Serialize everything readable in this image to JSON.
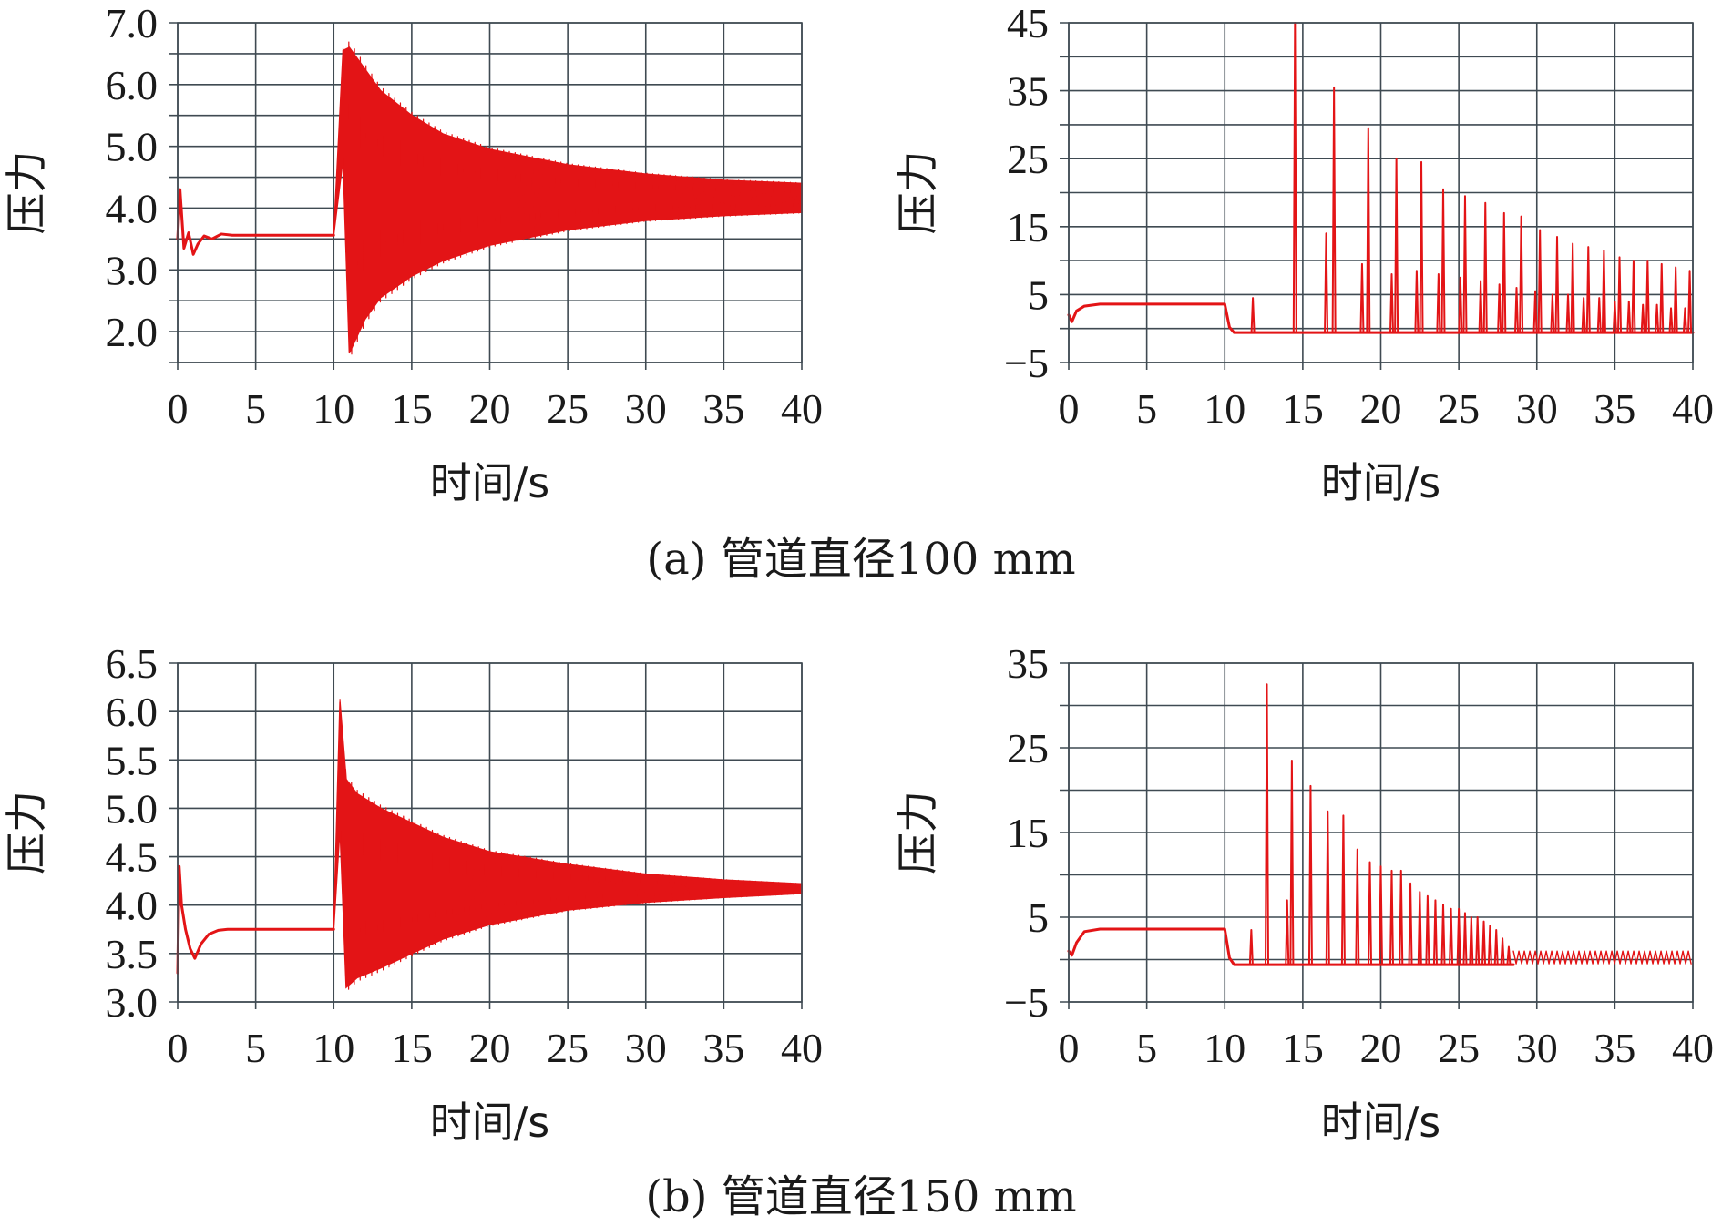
{
  "figure": {
    "captions": [
      "(a) 管道直径100 mm",
      "(b) 管道直径150 mm"
    ]
  },
  "style": {
    "series_color": "#e31416",
    "grid_color": "#3f4a52"
  },
  "chart_data": [
    {
      "id": "a-left",
      "type": "line",
      "row_caption": "(a) 管道直径100 mm",
      "xlabel": "时间/s",
      "ylabel": "压力",
      "xlim": [
        0,
        40
      ],
      "ylim": [
        1.5,
        7.0
      ],
      "x_ticks": [
        0,
        5,
        10,
        15,
        20,
        25,
        30,
        35,
        40
      ],
      "y_ticks": [
        2.0,
        3.0,
        4.0,
        5.0,
        6.0,
        7.0
      ],
      "y_tick_labels": [
        "2.0",
        "3.0",
        "4.0",
        "5.0",
        "6.0",
        "7.0"
      ],
      "y_grid": [
        1.5,
        2.0,
        2.5,
        3.0,
        3.5,
        4.0,
        4.5,
        5.0,
        5.5,
        6.0,
        6.5,
        7.0
      ],
      "grid": true,
      "series": [
        {
          "color": "#e31416",
          "kind": "envelope",
          "steady_x": [
            0,
            0.15,
            0.4,
            0.7,
            1.0,
            1.3,
            1.7,
            2.2,
            2.8,
            3.5,
            10.0
          ],
          "steady_y": [
            3.5,
            4.3,
            3.35,
            3.6,
            3.25,
            3.42,
            3.55,
            3.5,
            3.58,
            3.56,
            3.56
          ],
          "peak_x": [
            10.0,
            10.6,
            11.0,
            12.0,
            13.0,
            15.0,
            17.0,
            20.0,
            25.0,
            30.0,
            35.0,
            40.0
          ],
          "upper": [
            3.56,
            6.55,
            6.6,
            6.25,
            5.9,
            5.5,
            5.2,
            4.95,
            4.7,
            4.55,
            4.45,
            4.4
          ],
          "lower": [
            3.56,
            4.8,
            1.65,
            2.2,
            2.55,
            2.9,
            3.15,
            3.4,
            3.65,
            3.8,
            3.88,
            3.93
          ]
        }
      ]
    },
    {
      "id": "a-right",
      "type": "line",
      "row_caption": "(a) 管道直径100 mm",
      "xlabel": "时间/s",
      "ylabel": "压力",
      "xlim": [
        0,
        40
      ],
      "ylim": [
        -5,
        45
      ],
      "x_ticks": [
        0,
        5,
        10,
        15,
        20,
        25,
        30,
        35,
        40
      ],
      "y_ticks": [
        -5,
        5,
        15,
        25,
        35,
        45
      ],
      "y_tick_labels": [
        "−5",
        "5",
        "15",
        "25",
        "35",
        "45"
      ],
      "y_grid": [
        -5,
        0,
        5,
        10,
        15,
        20,
        25,
        30,
        35,
        40,
        45
      ],
      "grid": true,
      "series": [
        {
          "color": "#e31416",
          "kind": "spikes",
          "base_x": [
            0,
            0.2,
            0.5,
            1.0,
            2.0,
            10.0,
            10.3,
            10.6
          ],
          "base_y": [
            2.0,
            1.0,
            2.6,
            3.3,
            3.6,
            3.6,
            0.2,
            -0.6
          ],
          "floor": -0.6,
          "spikes": [
            {
              "x": 11.8,
              "y": 4.5
            },
            {
              "x": 14.5,
              "y": 45.0
            },
            {
              "x": 16.5,
              "y": 14.0
            },
            {
              "x": 17.0,
              "y": 35.5
            },
            {
              "x": 18.8,
              "y": 9.5
            },
            {
              "x": 19.2,
              "y": 29.5
            },
            {
              "x": 20.7,
              "y": 8.0
            },
            {
              "x": 21.0,
              "y": 25.0
            },
            {
              "x": 22.3,
              "y": 8.5
            },
            {
              "x": 22.6,
              "y": 24.5
            },
            {
              "x": 23.7,
              "y": 8.0
            },
            {
              "x": 24.0,
              "y": 20.5
            },
            {
              "x": 25.1,
              "y": 7.5
            },
            {
              "x": 25.4,
              "y": 19.5
            },
            {
              "x": 26.4,
              "y": 7.0
            },
            {
              "x": 26.7,
              "y": 18.5
            },
            {
              "x": 27.6,
              "y": 6.5
            },
            {
              "x": 27.9,
              "y": 17.0
            },
            {
              "x": 28.7,
              "y": 6.0
            },
            {
              "x": 29.0,
              "y": 16.5
            },
            {
              "x": 29.9,
              "y": 5.5
            },
            {
              "x": 30.2,
              "y": 14.5
            },
            {
              "x": 31.0,
              "y": 5.0
            },
            {
              "x": 31.3,
              "y": 13.5
            },
            {
              "x": 32.0,
              "y": 5.0
            },
            {
              "x": 32.3,
              "y": 12.5
            },
            {
              "x": 33.0,
              "y": 4.5
            },
            {
              "x": 33.3,
              "y": 12.0
            },
            {
              "x": 34.0,
              "y": 4.5
            },
            {
              "x": 34.3,
              "y": 11.5
            },
            {
              "x": 35.0,
              "y": 4.0
            },
            {
              "x": 35.3,
              "y": 10.5
            },
            {
              "x": 35.9,
              "y": 4.0
            },
            {
              "x": 36.2,
              "y": 10.0
            },
            {
              "x": 36.8,
              "y": 3.5
            },
            {
              "x": 37.1,
              "y": 10.0
            },
            {
              "x": 37.7,
              "y": 3.5
            },
            {
              "x": 38.0,
              "y": 9.5
            },
            {
              "x": 38.6,
              "y": 3.0
            },
            {
              "x": 38.9,
              "y": 9.0
            },
            {
              "x": 39.5,
              "y": 3.0
            },
            {
              "x": 39.8,
              "y": 8.5
            }
          ]
        }
      ]
    },
    {
      "id": "b-left",
      "type": "line",
      "row_caption": "(b) 管道直径150 mm",
      "xlabel": "时间/s",
      "ylabel": "压力",
      "xlim": [
        0,
        40
      ],
      "ylim": [
        3.0,
        6.5
      ],
      "x_ticks": [
        0,
        5,
        10,
        15,
        20,
        25,
        30,
        35,
        40
      ],
      "y_ticks": [
        3.0,
        3.5,
        4.0,
        4.5,
        5.0,
        5.5,
        6.0,
        6.5
      ],
      "y_tick_labels": [
        "3.0",
        "3.5",
        "4.0",
        "4.5",
        "5.0",
        "5.5",
        "6.0",
        "6.5"
      ],
      "y_grid": [
        3.0,
        3.5,
        4.0,
        4.5,
        5.0,
        5.5,
        6.0,
        6.5
      ],
      "grid": true,
      "series": [
        {
          "color": "#e31416",
          "kind": "envelope",
          "steady_x": [
            0,
            0.1,
            0.25,
            0.5,
            0.8,
            1.1,
            1.5,
            2.0,
            2.6,
            3.2,
            10.0
          ],
          "steady_y": [
            3.3,
            4.4,
            4.0,
            3.75,
            3.55,
            3.45,
            3.6,
            3.7,
            3.74,
            3.75,
            3.75
          ],
          "peak_x": [
            10.0,
            10.4,
            10.8,
            11.5,
            13.0,
            15.0,
            17.0,
            20.0,
            25.0,
            30.0,
            35.0,
            40.0
          ],
          "upper": [
            3.75,
            6.1,
            5.3,
            5.15,
            5.0,
            4.85,
            4.7,
            4.55,
            4.42,
            4.32,
            4.26,
            4.22
          ],
          "lower": [
            3.75,
            4.8,
            3.15,
            3.25,
            3.35,
            3.5,
            3.65,
            3.8,
            3.95,
            4.03,
            4.08,
            4.12
          ]
        }
      ]
    },
    {
      "id": "b-right",
      "type": "line",
      "row_caption": "(b) 管道直径150 mm",
      "xlabel": "时间/s",
      "ylabel": "压力",
      "xlim": [
        0,
        40
      ],
      "ylim": [
        -5,
        35
      ],
      "x_ticks": [
        0,
        5,
        10,
        15,
        20,
        25,
        30,
        35,
        40
      ],
      "y_ticks": [
        -5,
        5,
        15,
        25,
        35
      ],
      "y_tick_labels": [
        "−5",
        "5",
        "15",
        "25",
        "35"
      ],
      "y_grid": [
        -5,
        0,
        5,
        10,
        15,
        20,
        25,
        30,
        35
      ],
      "grid": true,
      "series": [
        {
          "color": "#e31416",
          "kind": "spikes",
          "base_x": [
            0,
            0.2,
            0.5,
            1.0,
            2.0,
            10.0,
            10.3,
            10.6
          ],
          "base_y": [
            1.0,
            0.5,
            2.0,
            3.3,
            3.6,
            3.6,
            0.2,
            -0.6
          ],
          "floor": -0.6,
          "spikes": [
            {
              "x": 11.7,
              "y": 3.5
            },
            {
              "x": 12.7,
              "y": 32.5
            },
            {
              "x": 14.0,
              "y": 7.0
            },
            {
              "x": 14.3,
              "y": 23.5
            },
            {
              "x": 15.5,
              "y": 20.5
            },
            {
              "x": 16.6,
              "y": 17.5
            },
            {
              "x": 17.6,
              "y": 17.0
            },
            {
              "x": 18.5,
              "y": 13.0
            },
            {
              "x": 19.3,
              "y": 11.5
            },
            {
              "x": 20.0,
              "y": 11.0
            },
            {
              "x": 20.7,
              "y": 10.5
            },
            {
              "x": 21.3,
              "y": 10.5
            },
            {
              "x": 21.9,
              "y": 9.0
            },
            {
              "x": 22.5,
              "y": 8.0
            },
            {
              "x": 23.0,
              "y": 7.5
            },
            {
              "x": 23.5,
              "y": 7.0
            },
            {
              "x": 24.0,
              "y": 6.5
            },
            {
              "x": 24.5,
              "y": 6.0
            },
            {
              "x": 25.0,
              "y": 6.0
            },
            {
              "x": 25.4,
              "y": 5.5
            },
            {
              "x": 25.8,
              "y": 5.0
            },
            {
              "x": 26.2,
              "y": 5.0
            },
            {
              "x": 26.6,
              "y": 4.5
            },
            {
              "x": 27.0,
              "y": 4.0
            },
            {
              "x": 27.4,
              "y": 3.5
            },
            {
              "x": 27.8,
              "y": 2.5
            },
            {
              "x": 28.2,
              "y": 1.5
            }
          ],
          "tail_x": [
            28.5,
            40.0
          ],
          "tail_range": [
            -0.5,
            1.0
          ]
        }
      ]
    }
  ]
}
